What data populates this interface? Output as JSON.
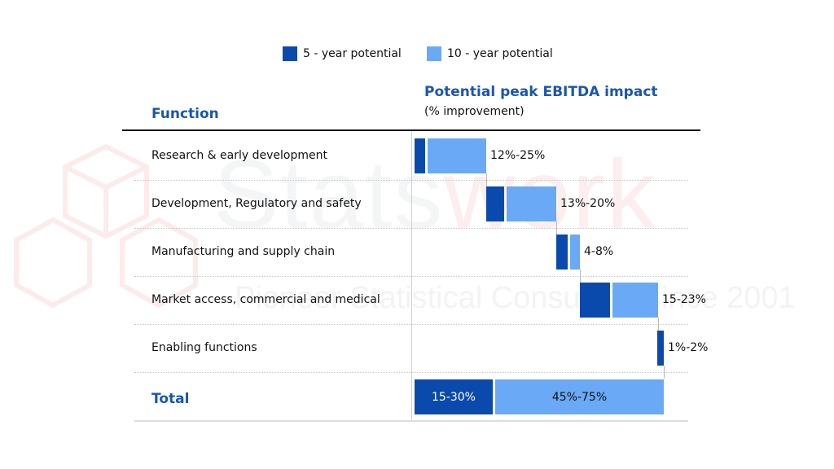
{
  "watermark": {
    "brand_a": "Stats",
    "brand_b": "work",
    "tagline": "Pioneer Statistical Consulting since 2001"
  },
  "legend": [
    {
      "label": "5 - year potential",
      "color": "#0b4aad"
    },
    {
      "label": "10 - year potential",
      "color": "#6aa9f5"
    }
  ],
  "header": {
    "function": "Function",
    "impact": "Potential peak EBITDA impact",
    "impact_sub": "(% improvement)"
  },
  "chart_data": {
    "type": "bar",
    "subtype": "waterfall",
    "title": "Potential peak EBITDA impact",
    "subtitle": "(% improvement)",
    "categories": [
      "Research & early development",
      "Development, Regulatory and safety",
      "Manufacturing and supply chain",
      "Market access, commercial and medical",
      "Enabling functions"
    ],
    "range_labels": [
      "12%-25%",
      "13%-20%",
      "4-8%",
      "15-23%",
      "1%-2%"
    ],
    "series": [
      {
        "name": "5 - year potential",
        "color": "#0b4aad"
      },
      {
        "name": "10 - year potential",
        "color": "#6aa9f5"
      }
    ],
    "total": {
      "label": "Total",
      "five_year": "15-30%",
      "ten_year": "45%-75%"
    },
    "grid": false,
    "legend_position": "top"
  }
}
